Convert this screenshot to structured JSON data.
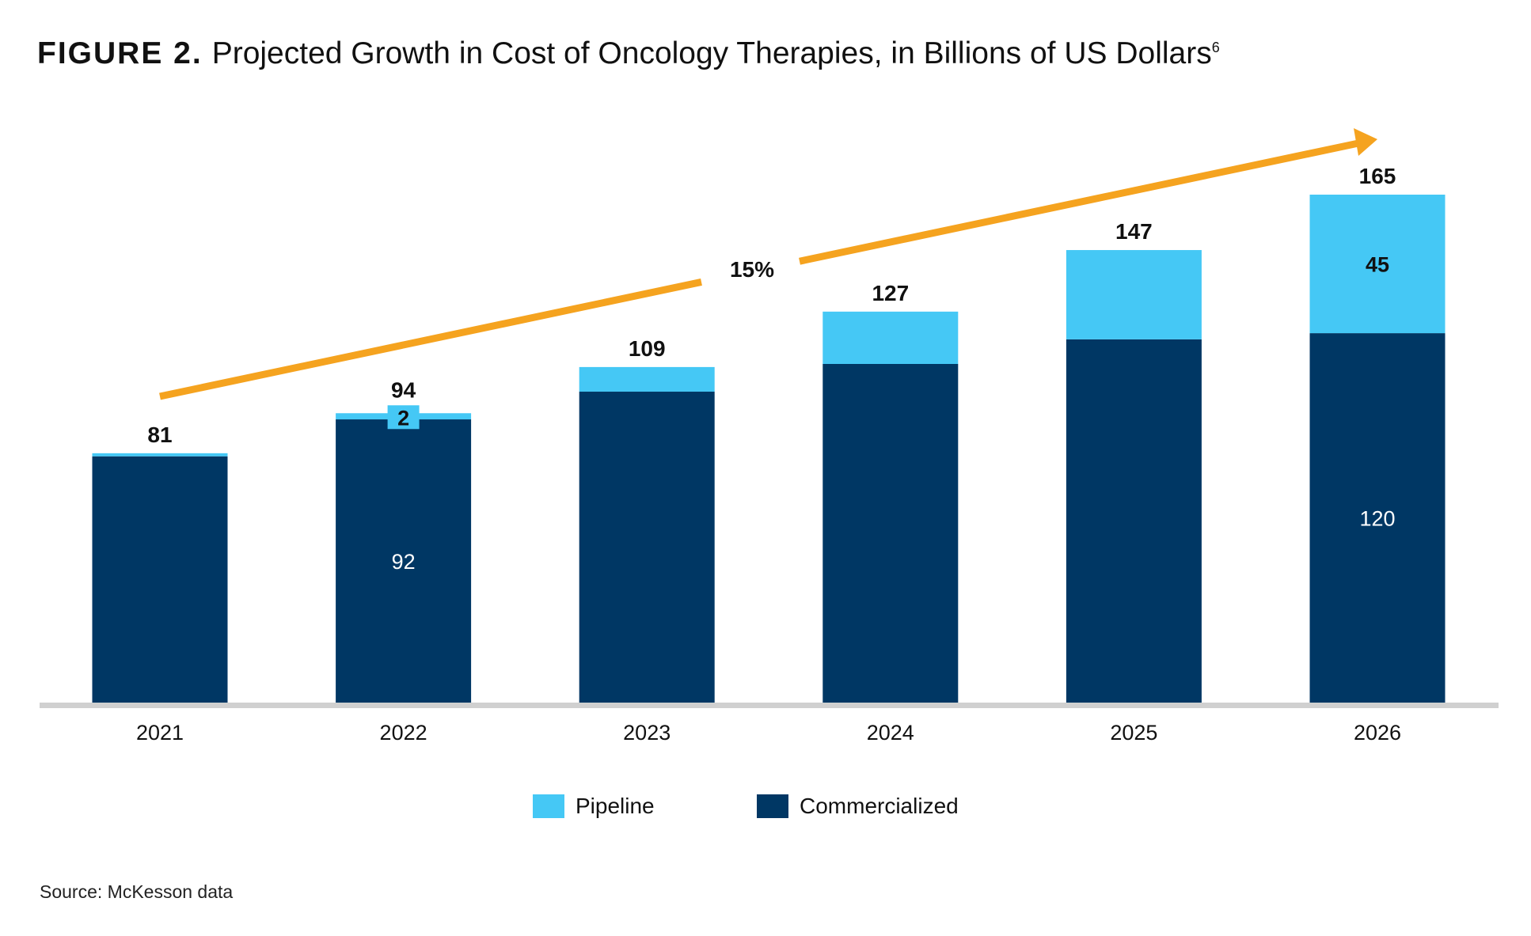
{
  "title": {
    "label": "FIGURE 2.",
    "text": "Projected Growth in Cost of Oncology Therapies, in Billions of US Dollars",
    "superscript": "6"
  },
  "source": "Source: McKesson data",
  "colors": {
    "pipeline": "#45C8F5",
    "commercialized": "#003764",
    "arrow": "#F5A31F",
    "axis": "#D0D0D0"
  },
  "chart_data": {
    "type": "bar",
    "stacked": true,
    "categories": [
      "2021",
      "2022",
      "2023",
      "2024",
      "2025",
      "2026"
    ],
    "series": [
      {
        "name": "Commercialized",
        "values": [
          80,
          92,
          101,
          110,
          118,
          120
        ]
      },
      {
        "name": "Pipeline",
        "values": [
          1,
          2,
          8,
          17,
          29,
          45
        ]
      }
    ],
    "totals": [
      81,
      94,
      109,
      127,
      147,
      165
    ],
    "segment_labels": {
      "2022": {
        "Commercialized": "92",
        "Pipeline": "2"
      },
      "2026": {
        "Commercialized": "120",
        "Pipeline": "45"
      }
    },
    "annotation": {
      "text": "15%",
      "type": "trend-arrow"
    },
    "ylim": [
      0,
      165
    ],
    "grid": false,
    "legend": "bottom-center"
  }
}
